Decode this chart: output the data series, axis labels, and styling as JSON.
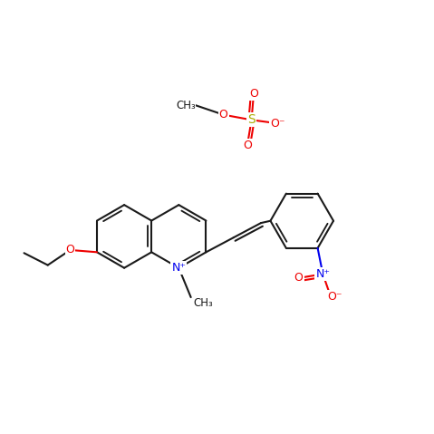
{
  "bg_color": "#ffffff",
  "bond_color": "#1a1a1a",
  "bond_width": 1.5,
  "atom_colors": {
    "N": "#0000ee",
    "O": "#ee0000",
    "S": "#aaaa00",
    "C": "#1a1a1a"
  },
  "font_size": 9,
  "fig_size": [
    4.79,
    4.79
  ],
  "dpi": 100,
  "xlim": [
    0,
    10
  ],
  "ylim": [
    0,
    10
  ]
}
